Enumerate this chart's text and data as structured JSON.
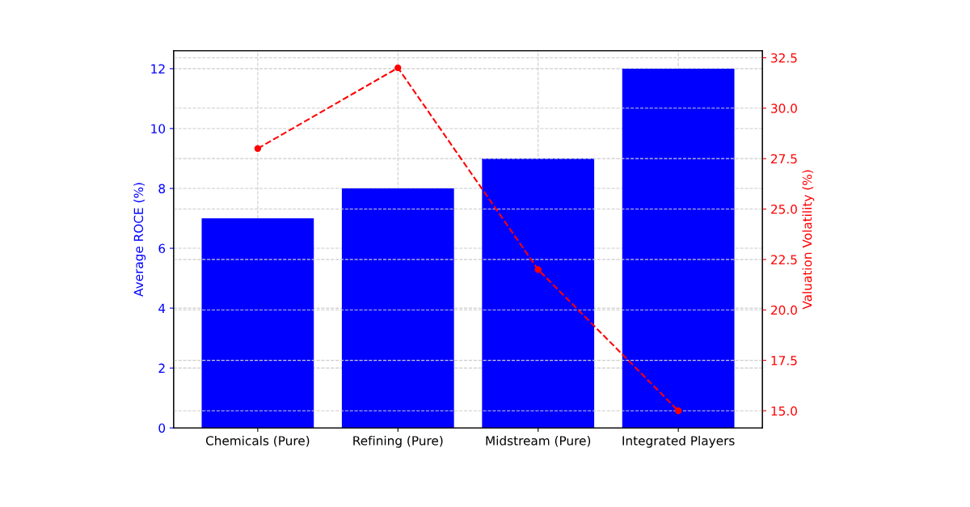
{
  "chart_data": {
    "type": "bar",
    "categories": [
      "Chemicals (Pure)",
      "Refining (Pure)",
      "Midstream (Pure)",
      "Integrated Players"
    ],
    "ylabel": "Average ROCE (%)",
    "y2label": "Valuation Volatility (%)",
    "series": [
      {
        "color": "#0000ff",
        "values": [
          7,
          8,
          9,
          12
        ]
      },
      {
        "type": "line",
        "axis": "y2",
        "color": "#ff0000",
        "values": [
          28,
          32,
          22,
          15
        ],
        "marker": "circle",
        "line_style": "dashed"
      }
    ],
    "ylim": [
      0,
      12.6
    ],
    "yticks": [
      0,
      2,
      4,
      6,
      8,
      10,
      12
    ],
    "y2lim": [
      14.15,
      32.85
    ],
    "y2ticks": [
      {
        "value": 15,
        "label": "15.0"
      },
      17.5,
      {
        "value": 20,
        "label": "20.0"
      },
      22.5,
      {
        "value": 25,
        "label": "25.0"
      },
      27.5,
      {
        "value": 30,
        "label": "30.0"
      },
      32.5
    ],
    "grid": true
  }
}
